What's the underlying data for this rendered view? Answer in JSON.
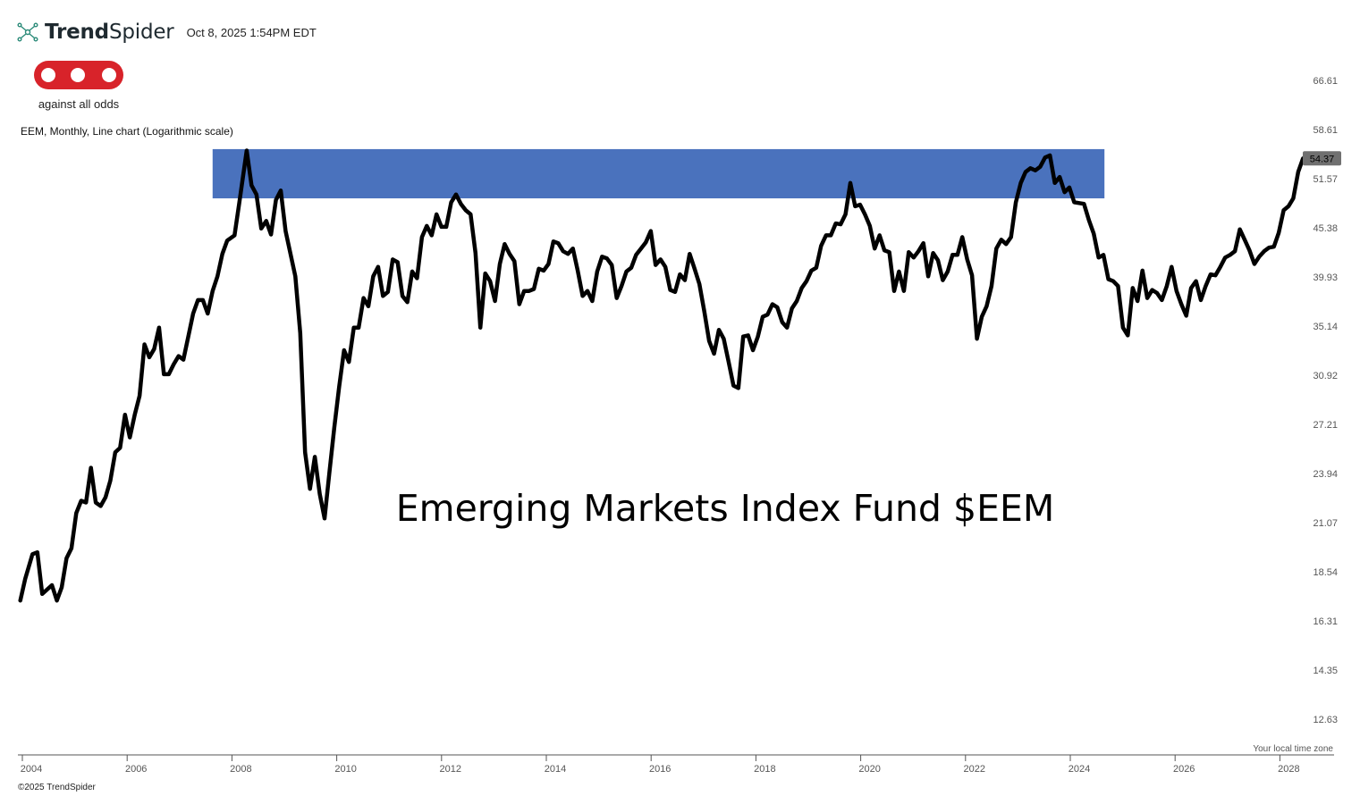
{
  "header": {
    "brand_bold": "Trend",
    "brand_light": "Spider",
    "timestamp": "Oct 8, 2025 1:54PM EDT"
  },
  "logo": {
    "text": "against all odds",
    "icon": "aao-logo"
  },
  "subtitle": "EEM, Monthly, Line chart (Logarithmic scale)",
  "footer": "©2025 TrendSpider",
  "tz_note": "Your local time zone",
  "colors": {
    "line": "#000000",
    "zone": "#4a72bd",
    "price_badge": "#707070"
  },
  "chart_data": {
    "type": "line",
    "title": "Emerging Markets Index Fund $EEM",
    "scale": "log",
    "y_ticks": [
      "66.61",
      "58.61",
      "51.57",
      "45.38",
      "39.93",
      "35.14",
      "30.92",
      "27.21",
      "23.94",
      "21.07",
      "18.54",
      "16.31",
      "14.35",
      "12.63"
    ],
    "x_ticks": [
      "2004",
      "2006",
      "2008",
      "2010",
      "2012",
      "2014",
      "2016",
      "2018",
      "2020",
      "2022",
      "2024",
      "2026",
      "2028"
    ],
    "last_price": "54.37",
    "resistance_zone": {
      "x_start": 2007.6,
      "x_end": 2025.92,
      "y_low": 49.0,
      "y_high": 55.7
    },
    "series": [
      {
        "values": [
          [
            2003.65,
            17.2
          ],
          [
            2003.75,
            18.2
          ],
          [
            2003.9,
            19.4
          ],
          [
            2004.0,
            19.5
          ],
          [
            2004.1,
            17.5
          ],
          [
            2004.3,
            17.9
          ],
          [
            2004.4,
            17.2
          ],
          [
            2004.5,
            17.8
          ],
          [
            2004.6,
            19.2
          ],
          [
            2004.7,
            19.7
          ],
          [
            2004.8,
            21.6
          ],
          [
            2004.9,
            22.3
          ],
          [
            2005.0,
            22.2
          ],
          [
            2005.1,
            24.3
          ],
          [
            2005.2,
            22.2
          ],
          [
            2005.3,
            22.0
          ],
          [
            2005.4,
            22.5
          ],
          [
            2005.5,
            23.5
          ],
          [
            2005.6,
            25.3
          ],
          [
            2005.7,
            25.6
          ],
          [
            2005.8,
            27.9
          ],
          [
            2005.9,
            26.3
          ],
          [
            2006.0,
            27.9
          ],
          [
            2006.1,
            29.3
          ],
          [
            2006.2,
            33.5
          ],
          [
            2006.3,
            32.4
          ],
          [
            2006.4,
            33.1
          ],
          [
            2006.5,
            35.0
          ],
          [
            2006.6,
            31.0
          ],
          [
            2006.7,
            31.0
          ],
          [
            2006.8,
            31.8
          ],
          [
            2006.9,
            32.5
          ],
          [
            2007.0,
            32.2
          ],
          [
            2007.1,
            34.2
          ],
          [
            2007.2,
            36.3
          ],
          [
            2007.3,
            37.6
          ],
          [
            2007.4,
            37.6
          ],
          [
            2007.5,
            36.3
          ],
          [
            2007.6,
            38.5
          ],
          [
            2007.7,
            40.0
          ],
          [
            2007.8,
            42.4
          ],
          [
            2007.9,
            43.9
          ],
          [
            2008.05,
            44.5
          ],
          [
            2008.15,
            48.5
          ],
          [
            2008.3,
            55.5
          ],
          [
            2008.4,
            50.7
          ],
          [
            2008.5,
            49.5
          ],
          [
            2008.6,
            45.3
          ],
          [
            2008.7,
            46.2
          ],
          [
            2008.8,
            44.6
          ],
          [
            2008.9,
            48.8
          ],
          [
            2009.0,
            50.0
          ],
          [
            2009.1,
            45.0
          ],
          [
            2009.3,
            40.0
          ],
          [
            2009.4,
            34.5
          ],
          [
            2009.5,
            25.3
          ],
          [
            2009.6,
            23.0
          ],
          [
            2009.7,
            25.0
          ],
          [
            2009.8,
            22.7
          ],
          [
            2009.9,
            21.3
          ],
          [
            2010.0,
            24.0
          ],
          [
            2010.1,
            27.0
          ],
          [
            2010.2,
            30.0
          ],
          [
            2010.3,
            33.0
          ],
          [
            2010.4,
            32.0
          ],
          [
            2010.5,
            35.0
          ],
          [
            2010.6,
            35.0
          ],
          [
            2010.7,
            37.8
          ],
          [
            2010.8,
            37.0
          ],
          [
            2010.9,
            40.0
          ],
          [
            2011.0,
            41.0
          ],
          [
            2011.1,
            38.0
          ],
          [
            2011.2,
            38.4
          ],
          [
            2011.3,
            41.8
          ],
          [
            2011.4,
            41.5
          ],
          [
            2011.5,
            38.0
          ],
          [
            2011.6,
            37.4
          ],
          [
            2011.7,
            40.5
          ],
          [
            2011.8,
            39.8
          ],
          [
            2011.9,
            44.3
          ],
          [
            2012.0,
            45.6
          ],
          [
            2012.1,
            44.5
          ],
          [
            2012.2,
            47.0
          ],
          [
            2012.3,
            45.5
          ],
          [
            2012.4,
            45.5
          ],
          [
            2012.5,
            48.5
          ],
          [
            2012.6,
            49.5
          ],
          [
            2012.7,
            48.3
          ],
          [
            2012.8,
            47.5
          ],
          [
            2012.9,
            47.0
          ],
          [
            2013.0,
            42.5
          ],
          [
            2013.1,
            35.0
          ],
          [
            2013.2,
            40.3
          ],
          [
            2013.3,
            39.5
          ],
          [
            2013.4,
            37.5
          ],
          [
            2013.5,
            41.3
          ],
          [
            2013.6,
            43.5
          ],
          [
            2013.7,
            42.4
          ],
          [
            2013.8,
            41.6
          ],
          [
            2013.9,
            37.2
          ],
          [
            2014.0,
            38.5
          ],
          [
            2014.1,
            38.5
          ],
          [
            2014.2,
            38.7
          ],
          [
            2014.3,
            40.8
          ],
          [
            2014.4,
            40.6
          ],
          [
            2014.5,
            41.3
          ],
          [
            2014.6,
            43.8
          ],
          [
            2014.7,
            43.6
          ],
          [
            2014.8,
            42.7
          ],
          [
            2014.9,
            42.4
          ],
          [
            2015.0,
            43.0
          ],
          [
            2015.1,
            40.6
          ],
          [
            2015.2,
            38.0
          ],
          [
            2015.3,
            38.5
          ],
          [
            2015.4,
            37.5
          ],
          [
            2015.5,
            40.5
          ],
          [
            2015.6,
            42.1
          ],
          [
            2015.7,
            41.9
          ],
          [
            2015.8,
            41.2
          ],
          [
            2015.9,
            37.8
          ],
          [
            2016.0,
            39.0
          ],
          [
            2016.1,
            40.5
          ],
          [
            2016.2,
            40.9
          ],
          [
            2016.3,
            42.3
          ],
          [
            2016.4,
            43.0
          ],
          [
            2016.5,
            43.7
          ],
          [
            2016.6,
            45.0
          ],
          [
            2016.7,
            41.2
          ],
          [
            2016.8,
            41.8
          ],
          [
            2016.9,
            41.0
          ],
          [
            2017.0,
            38.6
          ],
          [
            2017.1,
            38.4
          ],
          [
            2017.2,
            40.2
          ],
          [
            2017.3,
            39.6
          ],
          [
            2017.4,
            42.4
          ],
          [
            2017.5,
            40.8
          ],
          [
            2017.6,
            39.2
          ],
          [
            2017.7,
            36.5
          ],
          [
            2017.8,
            33.8
          ],
          [
            2017.9,
            32.7
          ],
          [
            2018.0,
            34.8
          ],
          [
            2018.1,
            34.0
          ],
          [
            2018.2,
            32.0
          ],
          [
            2018.3,
            30.1
          ],
          [
            2018.4,
            29.9
          ],
          [
            2018.5,
            34.2
          ],
          [
            2018.6,
            34.3
          ],
          [
            2018.7,
            33.0
          ],
          [
            2018.8,
            34.2
          ],
          [
            2018.9,
            36.0
          ],
          [
            2019.0,
            36.2
          ],
          [
            2019.1,
            37.2
          ],
          [
            2019.2,
            36.9
          ],
          [
            2019.3,
            35.5
          ],
          [
            2019.4,
            35.0
          ],
          [
            2019.5,
            36.8
          ],
          [
            2019.6,
            37.5
          ],
          [
            2019.7,
            38.8
          ],
          [
            2019.8,
            39.5
          ],
          [
            2019.9,
            40.6
          ],
          [
            2020.0,
            40.9
          ],
          [
            2020.1,
            43.3
          ],
          [
            2020.2,
            44.5
          ],
          [
            2020.3,
            44.5
          ],
          [
            2020.4,
            45.9
          ],
          [
            2020.5,
            45.8
          ],
          [
            2020.6,
            47.0
          ],
          [
            2020.7,
            51.0
          ],
          [
            2020.8,
            48.0
          ],
          [
            2020.9,
            48.2
          ],
          [
            2021.0,
            47.0
          ],
          [
            2021.1,
            45.6
          ],
          [
            2021.2,
            43.0
          ],
          [
            2021.3,
            44.5
          ],
          [
            2021.4,
            42.8
          ],
          [
            2021.5,
            42.6
          ],
          [
            2021.6,
            38.5
          ],
          [
            2021.7,
            40.5
          ],
          [
            2021.8,
            38.5
          ],
          [
            2021.9,
            42.6
          ],
          [
            2022.0,
            42.0
          ],
          [
            2022.1,
            42.7
          ],
          [
            2022.2,
            43.6
          ],
          [
            2022.3,
            40.0
          ],
          [
            2022.4,
            42.5
          ],
          [
            2022.5,
            41.7
          ],
          [
            2022.6,
            39.6
          ],
          [
            2022.7,
            40.5
          ],
          [
            2022.8,
            42.3
          ],
          [
            2022.9,
            42.3
          ],
          [
            2023.0,
            44.3
          ],
          [
            2023.1,
            41.8
          ],
          [
            2023.2,
            40.1
          ],
          [
            2023.3,
            34.0
          ],
          [
            2023.4,
            36.0
          ],
          [
            2023.5,
            37.0
          ],
          [
            2023.6,
            39.0
          ],
          [
            2023.7,
            43.0
          ],
          [
            2023.8,
            44.0
          ],
          [
            2023.9,
            43.5
          ],
          [
            2024.0,
            44.3
          ],
          [
            2024.1,
            48.5
          ],
          [
            2024.2,
            51.0
          ],
          [
            2024.3,
            52.5
          ],
          [
            2024.4,
            53.0
          ],
          [
            2024.5,
            52.7
          ],
          [
            2024.6,
            53.2
          ],
          [
            2024.7,
            54.5
          ],
          [
            2024.8,
            54.8
          ],
          [
            2024.9,
            51.0
          ],
          [
            2025.0,
            51.8
          ],
          [
            2025.1,
            49.8
          ],
          [
            2025.2,
            50.4
          ],
          [
            2025.3,
            48.5
          ],
          [
            2025.4,
            48.4
          ],
          [
            2025.5,
            48.3
          ],
          [
            2025.6,
            46.3
          ],
          [
            2025.7,
            44.7
          ],
          [
            2025.8,
            42.0
          ],
          [
            2025.9,
            42.3
          ],
          [
            2026.0,
            39.7
          ],
          [
            2026.1,
            39.5
          ],
          [
            2026.2,
            39.0
          ],
          [
            2026.3,
            35.0
          ],
          [
            2026.4,
            34.3
          ],
          [
            2026.5,
            38.8
          ],
          [
            2026.6,
            37.5
          ],
          [
            2026.7,
            40.6
          ],
          [
            2026.8,
            37.8
          ],
          [
            2026.9,
            38.6
          ],
          [
            2027.0,
            38.3
          ],
          [
            2027.1,
            37.6
          ],
          [
            2027.2,
            39.0
          ],
          [
            2027.3,
            41.0
          ],
          [
            2027.4,
            38.5
          ],
          [
            2027.5,
            37.2
          ],
          [
            2027.6,
            36.1
          ],
          [
            2027.7,
            38.8
          ],
          [
            2027.8,
            39.5
          ],
          [
            2027.9,
            37.6
          ],
          [
            2028.0,
            39.0
          ],
          [
            2028.1,
            40.2
          ],
          [
            2028.2,
            40.1
          ],
          [
            2028.3,
            41.0
          ],
          [
            2028.4,
            42.0
          ],
          [
            2028.5,
            42.3
          ],
          [
            2028.6,
            42.7
          ],
          [
            2028.7,
            45.2
          ],
          [
            2028.8,
            44.0
          ],
          [
            2028.9,
            42.8
          ],
          [
            2029.0,
            41.3
          ],
          [
            2029.1,
            42.1
          ],
          [
            2029.2,
            42.7
          ],
          [
            2029.3,
            43.1
          ],
          [
            2029.4,
            43.2
          ],
          [
            2029.5,
            44.8
          ],
          [
            2029.6,
            47.5
          ],
          [
            2029.7,
            48.0
          ],
          [
            2029.8,
            49.0
          ],
          [
            2029.9,
            52.5
          ],
          [
            2030.0,
            54.37
          ]
        ]
      }
    ]
  }
}
